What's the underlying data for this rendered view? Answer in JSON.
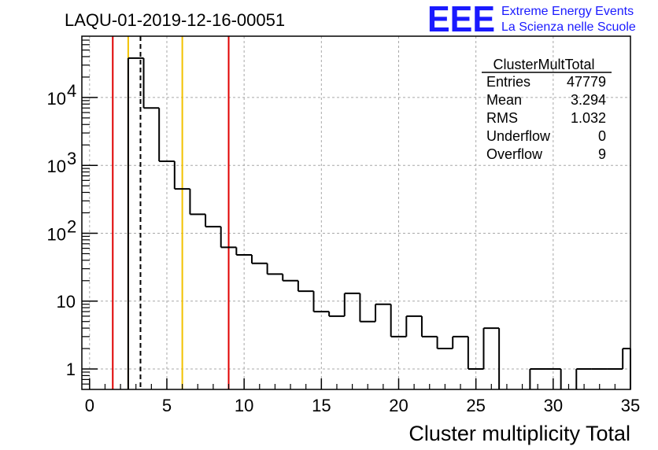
{
  "chart_data": {
    "type": "histogram",
    "title": "LAQU-01-2019-12-16-00051",
    "xlabel": "Cluster multiplicity Total",
    "ylabel": "",
    "xlim": [
      -0.5,
      35
    ],
    "ylim": [
      0.5,
      80000
    ],
    "yscale": "log",
    "grid": true,
    "bin_width": 1,
    "bin_edges_start": 2.5,
    "bins": [
      {
        "x0": 2.5,
        "value": 38000
      },
      {
        "x0": 3.5,
        "value": 7000
      },
      {
        "x0": 4.5,
        "value": 1150
      },
      {
        "x0": 5.5,
        "value": 450
      },
      {
        "x0": 6.5,
        "value": 190
      },
      {
        "x0": 7.5,
        "value": 125
      },
      {
        "x0": 8.5,
        "value": 62
      },
      {
        "x0": 9.5,
        "value": 48
      },
      {
        "x0": 10.5,
        "value": 36
      },
      {
        "x0": 11.5,
        "value": 25
      },
      {
        "x0": 12.5,
        "value": 20
      },
      {
        "x0": 13.5,
        "value": 14
      },
      {
        "x0": 14.5,
        "value": 7
      },
      {
        "x0": 15.5,
        "value": 6
      },
      {
        "x0": 16.5,
        "value": 13
      },
      {
        "x0": 17.5,
        "value": 5
      },
      {
        "x0": 18.5,
        "value": 9
      },
      {
        "x0": 19.5,
        "value": 3
      },
      {
        "x0": 20.5,
        "value": 6
      },
      {
        "x0": 21.5,
        "value": 3
      },
      {
        "x0": 22.5,
        "value": 2
      },
      {
        "x0": 23.5,
        "value": 3
      },
      {
        "x0": 24.5,
        "value": 1
      },
      {
        "x0": 25.5,
        "value": 4
      },
      {
        "x0": 26.5,
        "value": 0
      },
      {
        "x0": 27.5,
        "value": 0
      },
      {
        "x0": 28.5,
        "value": 1
      },
      {
        "x0": 29.5,
        "value": 1
      },
      {
        "x0": 30.5,
        "value": 0
      },
      {
        "x0": 31.5,
        "value": 1
      },
      {
        "x0": 32.5,
        "value": 1
      },
      {
        "x0": 33.5,
        "value": 1
      },
      {
        "x0": 34.5,
        "value": 2
      }
    ],
    "x_ticks": [
      "0",
      "5",
      "10",
      "15",
      "20",
      "25",
      "30",
      "35"
    ],
    "x_tick_values": [
      0,
      5,
      10,
      15,
      20,
      25,
      30,
      35
    ],
    "y_ticks": [
      {
        "value": 1,
        "label": "1"
      },
      {
        "value": 10,
        "label": "10"
      },
      {
        "value": 100,
        "label": "10",
        "sup": "2"
      },
      {
        "value": 1000,
        "label": "10",
        "sup": "3"
      },
      {
        "value": 10000,
        "label": "10",
        "sup": "4"
      }
    ],
    "vertical_lines": [
      {
        "x": 1.5,
        "color": "#e00000",
        "style": "solid"
      },
      {
        "x": 2.5,
        "color": "#f2c200",
        "style": "solid"
      },
      {
        "x": 3.294,
        "color": "#000000",
        "style": "dashed"
      },
      {
        "x": 6.0,
        "color": "#f2c200",
        "style": "solid"
      },
      {
        "x": 9.0,
        "color": "#e00000",
        "style": "solid"
      }
    ],
    "stats": {
      "name": "ClusterMultTotal",
      "rows": [
        {
          "label": "Entries",
          "value": "47779"
        },
        {
          "label": "Mean",
          "value": "3.294"
        },
        {
          "label": "RMS",
          "value": "1.032"
        },
        {
          "label": "Underflow",
          "value": "0"
        },
        {
          "label": "Overflow",
          "value": "9"
        }
      ]
    }
  },
  "logo": {
    "big": "EEE",
    "line1": "Extreme Energy Events",
    "line2": "La Scienza nelle Scuole",
    "color": "#1a1aff"
  }
}
